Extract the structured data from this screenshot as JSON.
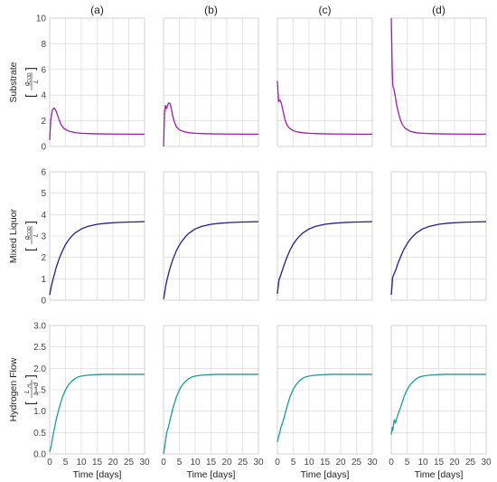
{
  "chart_data": {
    "type": "line",
    "layout": "3 rows x 4 columns small multiples",
    "grid": true,
    "legend": "none",
    "column_titles": [
      "(a)",
      "(b)",
      "(c)",
      "(d)"
    ],
    "x_axis": {
      "label": "Time [days]",
      "range": [
        0,
        30
      ],
      "ticks": [
        0,
        5,
        10,
        15,
        20,
        25,
        30
      ],
      "tick_labels": [
        "0",
        "5",
        "10",
        "15",
        "20",
        "25",
        "30"
      ]
    },
    "rows": [
      {
        "ylabel": "Substrate",
        "unit_num": "g",
        "unit_num_sub": "COD",
        "unit_den": "L",
        "ylim": [
          0,
          10
        ],
        "ticks": [
          0,
          2,
          4,
          6,
          8,
          10
        ],
        "tick_labels": [
          "0",
          "2",
          "4",
          "6",
          "8",
          "10"
        ],
        "color": "#9b1fa8",
        "series": [
          {
            "x": [
              0,
              0.3,
              0.8,
              1.3,
              1.8,
              2.2,
              2.8,
              3.5,
              4.5,
              6,
              8,
              10,
              13,
              16,
              20,
              25,
              30
            ],
            "y": [
              0.5,
              2.0,
              2.8,
              3.0,
              2.9,
              2.65,
              2.2,
              1.75,
              1.4,
              1.2,
              1.08,
              1.03,
              1.0,
              0.98,
              0.97,
              0.96,
              0.96
            ]
          },
          {
            "x": [
              0,
              0.3,
              0.6,
              0.9,
              1.1,
              1.4,
              1.7,
              2.1,
              2.5,
              2.9,
              3.3,
              4,
              5,
              6.5,
              8,
              10,
              13,
              16,
              20,
              25,
              30
            ],
            "y": [
              0,
              2.6,
              3.2,
              2.95,
              3.05,
              3.3,
              3.4,
              3.3,
              2.9,
              2.4,
              2.0,
              1.55,
              1.3,
              1.15,
              1.07,
              1.03,
              1.0,
              0.98,
              0.97,
              0.96,
              0.96
            ]
          },
          {
            "x": [
              0,
              0.2,
              0.4,
              0.6,
              0.9,
              1.2,
              1.6,
              2,
              2.5,
              3,
              3.5,
              4.5,
              6,
              8,
              10,
              13,
              16,
              20,
              25,
              30
            ],
            "y": [
              5.1,
              4.2,
              3.5,
              3.6,
              3.6,
              3.4,
              3.0,
              2.5,
              2.0,
              1.7,
              1.5,
              1.3,
              1.15,
              1.07,
              1.03,
              1.0,
              0.98,
              0.97,
              0.96,
              0.96
            ]
          },
          {
            "x": [
              0,
              0.15,
              0.3,
              0.5,
              0.8,
              1.2,
              1.6,
              2,
              2.5,
              3,
              3.5,
              4.5,
              6,
              8,
              10,
              13,
              16,
              20,
              25,
              30
            ],
            "y": [
              10,
              8.2,
              6.0,
              4.7,
              4.5,
              4.0,
              3.4,
              2.9,
              2.4,
              2.0,
              1.7,
              1.4,
              1.18,
              1.07,
              1.03,
              1.0,
              0.98,
              0.97,
              0.96,
              0.96
            ]
          }
        ]
      },
      {
        "ylabel": "Mixed Liquor",
        "unit_num": "g",
        "unit_num_sub": "COD",
        "unit_den": "L",
        "ylim": [
          0,
          6
        ],
        "ticks": [
          0,
          1,
          2,
          3,
          4,
          5,
          6
        ],
        "tick_labels": [
          "0",
          "1",
          "2",
          "3",
          "4",
          "5",
          "6"
        ],
        "color": "#1f1f8c",
        "series": [
          {
            "x": [
              0,
              0.5,
              1,
              2,
              3,
              4,
              5,
              6,
              7,
              8,
              10,
              12,
              15,
              18,
              21,
              24,
              27,
              30
            ],
            "y": [
              0.25,
              0.65,
              0.95,
              1.5,
              1.95,
              2.3,
              2.6,
              2.82,
              3.0,
              3.14,
              3.33,
              3.45,
              3.55,
              3.6,
              3.63,
              3.65,
              3.66,
              3.67
            ]
          },
          {
            "x": [
              0,
              0.3,
              0.6,
              1,
              2,
              3,
              4,
              5,
              6,
              7,
              8,
              10,
              12,
              15,
              18,
              21,
              24,
              27,
              30
            ],
            "y": [
              0.05,
              0.3,
              0.6,
              0.9,
              1.48,
              1.93,
              2.3,
              2.58,
              2.8,
              2.98,
              3.13,
              3.33,
              3.45,
              3.55,
              3.6,
              3.63,
              3.65,
              3.66,
              3.67
            ]
          },
          {
            "x": [
              0,
              0.2,
              0.5,
              1,
              2,
              3,
              4,
              5,
              6,
              7,
              8,
              10,
              12,
              15,
              18,
              21,
              24,
              27,
              30
            ],
            "y": [
              0.3,
              0.6,
              0.95,
              1.15,
              1.6,
              2.0,
              2.35,
              2.62,
              2.83,
              3.0,
              3.14,
              3.33,
              3.45,
              3.55,
              3.6,
              3.63,
              3.65,
              3.66,
              3.67
            ]
          },
          {
            "x": [
              0,
              0.2,
              0.4,
              0.8,
              1.5,
              2,
              3,
              4,
              5,
              6,
              7,
              8,
              10,
              12,
              15,
              18,
              21,
              24,
              27,
              30
            ],
            "y": [
              0.25,
              0.6,
              1.05,
              1.2,
              1.45,
              1.68,
              2.05,
              2.38,
              2.64,
              2.85,
              3.01,
              3.15,
              3.34,
              3.45,
              3.55,
              3.6,
              3.63,
              3.65,
              3.66,
              3.67
            ]
          }
        ]
      },
      {
        "ylabel": "Hydrogen Flow",
        "unit_num": "L",
        "unit_num_sub": "H₂",
        "unit_den": "L · d",
        "ylim": [
          0,
          3.0
        ],
        "ticks": [
          0,
          0.5,
          1.0,
          1.5,
          2.0,
          2.5,
          3.0
        ],
        "tick_labels": [
          "0.0",
          "0.5",
          "1.0",
          "1.5",
          "2.0",
          "2.5",
          "3.0"
        ],
        "color": "#1e9a9a",
        "series": [
          {
            "x": [
              0,
              0.5,
              1,
              2,
              3,
              4,
              5,
              6,
              7,
              8,
              9,
              10,
              12,
              14,
              17,
              20,
              25,
              30
            ],
            "y": [
              0.05,
              0.2,
              0.42,
              0.78,
              1.08,
              1.32,
              1.5,
              1.62,
              1.7,
              1.76,
              1.8,
              1.82,
              1.84,
              1.85,
              1.86,
              1.86,
              1.86,
              1.86
            ]
          },
          {
            "x": [
              0,
              0.5,
              1,
              1.5,
              2,
              3,
              4,
              5,
              6,
              7,
              8,
              9,
              10,
              12,
              14,
              17,
              20,
              25,
              30
            ],
            "y": [
              0,
              0.25,
              0.5,
              0.62,
              0.78,
              1.08,
              1.32,
              1.5,
              1.62,
              1.7,
              1.76,
              1.8,
              1.82,
              1.84,
              1.85,
              1.86,
              1.86,
              1.86,
              1.86
            ]
          },
          {
            "x": [
              0,
              0.4,
              0.7,
              1,
              1.5,
              2,
              3,
              4,
              5,
              6,
              7,
              8,
              9,
              10,
              12,
              14,
              17,
              20,
              25,
              30
            ],
            "y": [
              0.28,
              0.42,
              0.48,
              0.6,
              0.7,
              0.82,
              1.1,
              1.34,
              1.51,
              1.63,
              1.71,
              1.77,
              1.8,
              1.82,
              1.84,
              1.85,
              1.86,
              1.86,
              1.86,
              1.86
            ]
          },
          {
            "x": [
              0,
              0.3,
              0.5,
              0.8,
              1.0,
              1.3,
              1.6,
              2,
              2.5,
              3,
              4,
              5,
              6,
              7,
              8,
              9,
              10,
              12,
              14,
              17,
              20,
              25,
              30
            ],
            "y": [
              0.45,
              0.62,
              0.55,
              0.75,
              0.8,
              0.72,
              0.8,
              0.9,
              1.0,
              1.1,
              1.33,
              1.5,
              1.62,
              1.7,
              1.76,
              1.8,
              1.82,
              1.84,
              1.85,
              1.86,
              1.86,
              1.86,
              1.86
            ]
          }
        ]
      }
    ]
  }
}
